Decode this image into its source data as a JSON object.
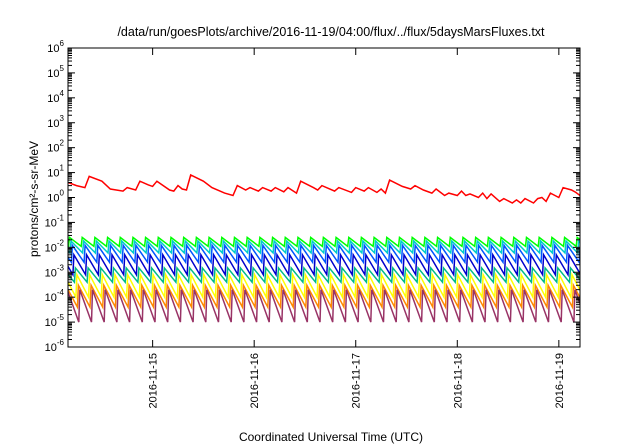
{
  "chart_data": {
    "type": "line",
    "title": "/data/run/goesPlots/archive/2016-11-19/04:00/flux/../flux/5daysMarsFluxes.txt",
    "xlabel": "Coordinated Universal Time (UTC)",
    "ylabel": "protons/cm²-s-sr-MeV",
    "x_type": "datetime",
    "x_range": [
      "2016-11-14 04:00",
      "2016-11-19 05:00"
    ],
    "x_ticks": [
      "2016-11-15",
      "2016-11-16",
      "2016-11-17",
      "2016-11-18",
      "2016-11-19"
    ],
    "y_scale": "log",
    "ylim": [
      1e-06,
      1000000.0
    ],
    "y_ticks": [
      {
        "base": "10",
        "exp": "-6"
      },
      {
        "base": "10",
        "exp": "-5"
      },
      {
        "base": "10",
        "exp": "-4"
      },
      {
        "base": "10",
        "exp": "-3"
      },
      {
        "base": "10",
        "exp": "-2"
      },
      {
        "base": "10",
        "exp": "-1"
      },
      {
        "base": "10",
        "exp": "0"
      },
      {
        "base": "10",
        "exp": "1"
      },
      {
        "base": "10",
        "exp": "2"
      },
      {
        "base": "10",
        "exp": "3"
      },
      {
        "base": "10",
        "exp": "4"
      },
      {
        "base": "10",
        "exp": "5"
      },
      {
        "base": "10",
        "exp": "6"
      }
    ],
    "grid": false,
    "legend": "none",
    "series": [
      {
        "color": "#ff0000",
        "points": [
          [
            "2016-11-14 04:00",
            4.0
          ],
          [
            "2016-11-14 06:00",
            3.0
          ],
          [
            "2016-11-14 08:00",
            2.5
          ],
          [
            "2016-11-14 09:00",
            7.0
          ],
          [
            "2016-11-14 12:00",
            4.5
          ],
          [
            "2016-11-14 14:00",
            2.2
          ],
          [
            "2016-11-14 17:00",
            1.8
          ],
          [
            "2016-11-14 18:00",
            2.5
          ],
          [
            "2016-11-14 20:00",
            2.0
          ],
          [
            "2016-11-14 21:00",
            4.5
          ],
          [
            "2016-11-14 23:00",
            3.2
          ],
          [
            "2016-11-15 00:00",
            2.8
          ],
          [
            "2016-11-15 01:00",
            4.5
          ],
          [
            "2016-11-15 04:00",
            2.0
          ],
          [
            "2016-11-15 05:00",
            1.8
          ],
          [
            "2016-11-15 06:00",
            3.0
          ],
          [
            "2016-11-15 07:00",
            2.2
          ],
          [
            "2016-11-15 08:00",
            2.0
          ],
          [
            "2016-11-15 09:00",
            8.0
          ],
          [
            "2016-11-15 12:00",
            4.5
          ],
          [
            "2016-11-15 14:00",
            2.5
          ],
          [
            "2016-11-15 17:00",
            1.5
          ],
          [
            "2016-11-15 19:00",
            1.2
          ],
          [
            "2016-11-15 20:00",
            3.0
          ],
          [
            "2016-11-15 22:00",
            2.0
          ],
          [
            "2016-11-15 23:00",
            2.5
          ],
          [
            "2016-11-16 01:00",
            1.8
          ],
          [
            "2016-11-16 02:00",
            2.5
          ],
          [
            "2016-11-16 04:00",
            1.8
          ],
          [
            "2016-11-16 05:00",
            2.5
          ],
          [
            "2016-11-16 07:00",
            1.7
          ],
          [
            "2016-11-16 08:00",
            2.5
          ],
          [
            "2016-11-16 10:00",
            1.5
          ],
          [
            "2016-11-16 11:00",
            4.5
          ],
          [
            "2016-11-16 14:00",
            2.5
          ],
          [
            "2016-11-16 15:00",
            2.0
          ],
          [
            "2016-11-16 16:00",
            3.0
          ],
          [
            "2016-11-16 19:00",
            1.8
          ],
          [
            "2016-11-16 20:00",
            2.5
          ],
          [
            "2016-11-16 23:00",
            1.6
          ],
          [
            "2016-11-17 00:00",
            2.5
          ],
          [
            "2016-11-17 02:00",
            1.8
          ],
          [
            "2016-11-17 03:00",
            2.5
          ],
          [
            "2016-11-17 05:00",
            1.6
          ],
          [
            "2016-11-17 06:00",
            2.2
          ],
          [
            "2016-11-17 07:00",
            1.5
          ],
          [
            "2016-11-17 08:00",
            5.0
          ],
          [
            "2016-11-17 11:00",
            2.8
          ],
          [
            "2016-11-17 13:00",
            2.2
          ],
          [
            "2016-11-17 14:00",
            3.0
          ],
          [
            "2016-11-17 16:00",
            2.0
          ],
          [
            "2016-11-17 18:00",
            1.5
          ],
          [
            "2016-11-17 19:00",
            2.2
          ],
          [
            "2016-11-17 21:00",
            1.2
          ],
          [
            "2016-11-17 22:00",
            1.5
          ],
          [
            "2016-11-18 00:00",
            1.2
          ],
          [
            "2016-11-18 01:00",
            1.8
          ],
          [
            "2016-11-18 02:00",
            1.2
          ],
          [
            "2016-11-18 03:00",
            1.4
          ],
          [
            "2016-11-18 05:00",
            1.0
          ],
          [
            "2016-11-18 06:00",
            1.5
          ],
          [
            "2016-11-18 07:00",
            0.9
          ],
          [
            "2016-11-18 08:00",
            1.4
          ],
          [
            "2016-11-18 10:00",
            0.7
          ],
          [
            "2016-11-18 11:00",
            0.9
          ],
          [
            "2016-11-18 13:00",
            0.6
          ],
          [
            "2016-11-18 14:00",
            0.8
          ],
          [
            "2016-11-18 15:00",
            0.6
          ],
          [
            "2016-11-18 16:00",
            0.9
          ],
          [
            "2016-11-18 18:00",
            0.6
          ],
          [
            "2016-11-18 19:00",
            0.9
          ],
          [
            "2016-11-18 20:00",
            1.0
          ],
          [
            "2016-11-18 21:00",
            0.7
          ],
          [
            "2016-11-18 22:00",
            1.5
          ],
          [
            "2016-11-19 00:00",
            1.0
          ],
          [
            "2016-11-19 01:00",
            2.5
          ],
          [
            "2016-11-19 03:00",
            2.0
          ],
          [
            "2016-11-19 04:00",
            1.6
          ],
          [
            "2016-11-19 05:00",
            1.2
          ],
          [
            "2016-11-19 07:00",
            0.8
          ],
          [
            "2016-11-19 09:00",
            0.6
          ],
          [
            "2016-11-19 10:00",
            0.55
          ]
        ]
      },
      {
        "color": "#00ff00",
        "pattern": "sawtooth",
        "period_hours": 3,
        "peak": 0.025,
        "trough": 0.011
      },
      {
        "color": "#00cccc",
        "pattern": "sawtooth",
        "period_hours": 3,
        "peak": 0.018,
        "trough": 0.006
      },
      {
        "color": "#0055ff",
        "pattern": "sawtooth",
        "period_hours": 3,
        "peak": 0.012,
        "trough": 0.0025
      },
      {
        "color": "#0000cc",
        "pattern": "sawtooth",
        "period_hours": 3,
        "peak": 0.005,
        "trough": 0.0008
      },
      {
        "color": "#00bb88",
        "pattern": "sawtooth",
        "period_hours": 3,
        "peak": 0.0015,
        "trough": 0.0004
      },
      {
        "color": "#ffff00",
        "pattern": "sawtooth",
        "period_hours": 3,
        "peak": 0.0008,
        "trough": 0.0001
      },
      {
        "color": "#ff8800",
        "pattern": "sawtooth",
        "period_hours": 3,
        "peak": 0.0003,
        "trough": 4e-05
      },
      {
        "color": "#993366",
        "pattern": "sawtooth",
        "period_hours": 3,
        "peak": 0.0002,
        "trough": 1e-05
      }
    ]
  }
}
